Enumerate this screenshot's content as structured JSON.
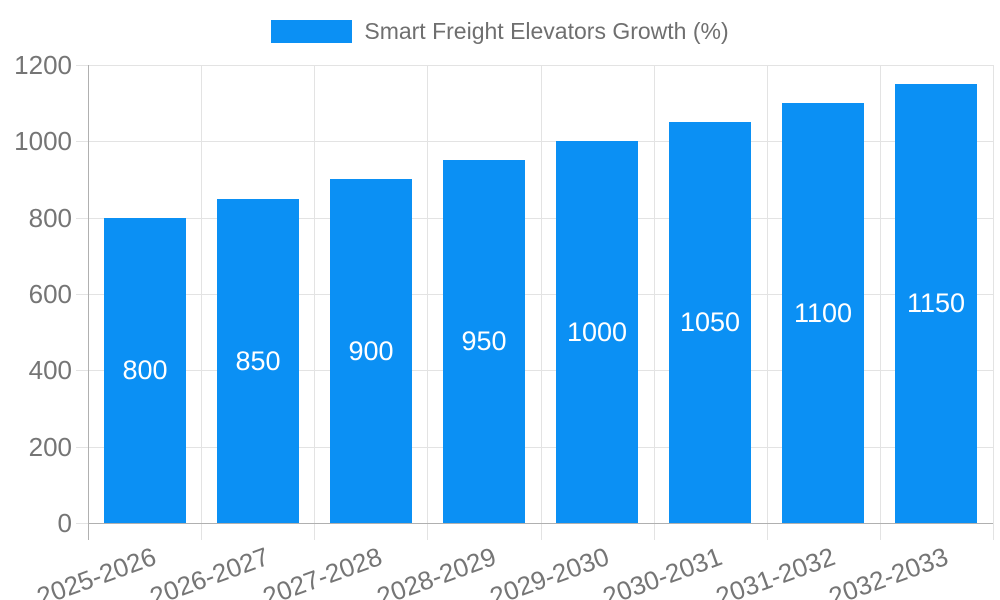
{
  "chart_data": {
    "type": "bar",
    "title": "",
    "series_name": "Smart Freight Elevators Growth (%)",
    "categories": [
      "2025-2026",
      "2026-2027",
      "2027-2028",
      "2028-2029",
      "2029-2030",
      "2030-2031",
      "2031-2032",
      "2032-2033"
    ],
    "values": [
      800,
      850,
      900,
      950,
      1000,
      1050,
      1100,
      1150
    ],
    "xlabel": "",
    "ylabel": "",
    "ylim": [
      0,
      1200
    ],
    "yticks": [
      0,
      200,
      400,
      600,
      800,
      1000,
      1200
    ],
    "x_tick_rotation_deg": -20,
    "legend_position": "top",
    "grid": true,
    "colors": {
      "bar": "#0b90f4",
      "bar_value_text": "#ffffff",
      "grid": "#e3e3e3",
      "axis": "#b0b0b0",
      "tick_text": "#757575",
      "legend_text": "#6f6f6f",
      "background": "#ffffff"
    }
  }
}
